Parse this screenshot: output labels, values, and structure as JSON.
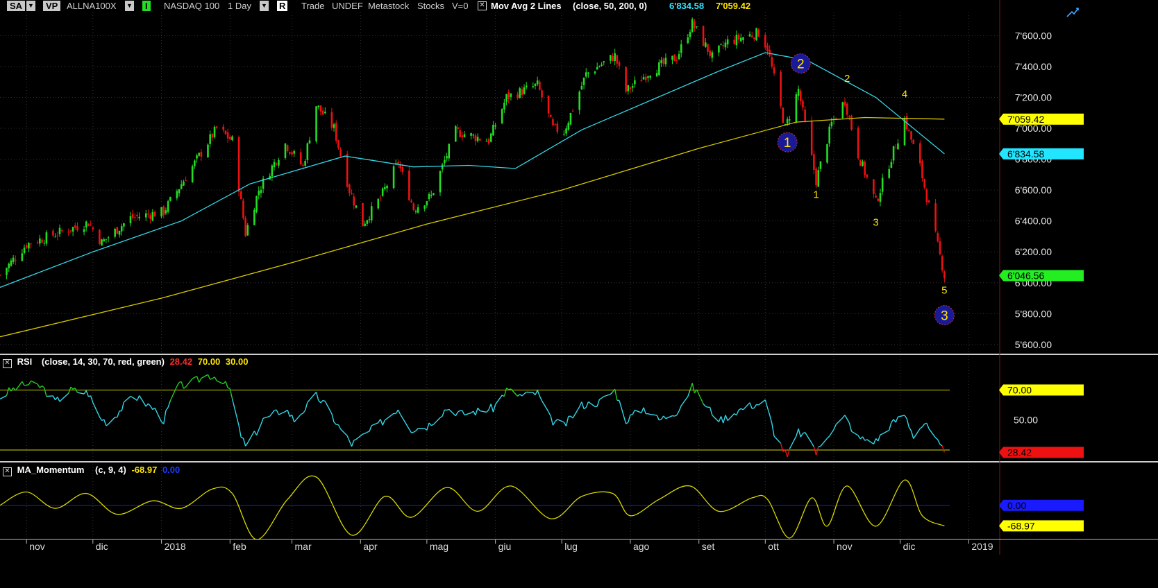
{
  "toolbar": {
    "sa_label": "SA",
    "vp_label": "VP",
    "symbol": "ALLNA100X",
    "indicator_toggle_label": "I",
    "instrument_name": "NASDAQ 100",
    "period": "1 Day",
    "r_label": "R",
    "mode_trade": "Trade",
    "mode_undef": "UNDEF",
    "source": "Metastock",
    "asset_class": "Stocks",
    "volume_flag": "V=0",
    "ma_name": "Mov Avg 2 Lines",
    "ma_params": "(close,  50,  200,  0)",
    "ma50_value": "6'834.58",
    "ma200_value": "7'059.42"
  },
  "rsi_header": {
    "name": "RSI",
    "params": "(close,  14,  30,  70,  red,  green)",
    "value": "28.42",
    "upper": "70.00",
    "lower": "30.00"
  },
  "mom_header": {
    "name": "MA_Momentum",
    "params": "(c,  9,  4)",
    "value": "-68.97",
    "zero": "0.00"
  },
  "colors": {
    "background": "#000000",
    "grid": "#333333",
    "up": "#22dd22",
    "down": "#ee1111",
    "ma50": "#33d6e6",
    "ma200": "#d8c800",
    "rsi_line": "#33d6e6",
    "rsi_high": "#22cc22",
    "rsi_low": "#ee1111",
    "rsi_band": "#d8d800",
    "momentum": "#d8d800",
    "zero_line": "#1a1aff",
    "wave_circle": "#1a1a99",
    "wave_text": "#ffe600"
  },
  "chart_data": [
    {
      "type": "candlestick",
      "title": "NASDAQ 100 1 Day",
      "y_ticks": [
        "7'600.00",
        "7'400.00",
        "7'200.00",
        "7'000.00",
        "6'800.00",
        "6'600.00",
        "6'400.00",
        "6'200.00",
        "6'000.00",
        "5'800.00",
        "5'600.00"
      ],
      "y_tick_values": [
        7600,
        7400,
        7200,
        7000,
        6800,
        6600,
        6400,
        6200,
        6000,
        5800,
        5600
      ],
      "ylim": [
        5550,
        7750
      ],
      "x_ticks": [
        "nov",
        "dic",
        "2018",
        "feb",
        "mar",
        "apr",
        "mag",
        "giu",
        "lug",
        "ago",
        "set",
        "ott",
        "nov",
        "dic",
        "2019"
      ],
      "x_tick_dates": [
        "2017-11-01",
        "2017-12-01",
        "2018-01-01",
        "2018-02-01",
        "2018-03-01",
        "2018-04-01",
        "2018-05-01",
        "2018-06-01",
        "2018-07-01",
        "2018-08-01",
        "2018-09-01",
        "2018-10-01",
        "2018-11-01",
        "2018-12-01",
        "2019-01-01"
      ],
      "x_range": [
        "2017-10-20",
        "2019-01-15"
      ],
      "last_date": "2018-12-21",
      "close_path": [
        {
          "date": "2017-10-20",
          "close": 6050
        },
        {
          "date": "2017-11-01",
          "close": 6250
        },
        {
          "date": "2017-11-15",
          "close": 6320
        },
        {
          "date": "2017-11-29",
          "close": 6390
        },
        {
          "date": "2017-12-05",
          "close": 6260
        },
        {
          "date": "2017-12-18",
          "close": 6420
        },
        {
          "date": "2018-01-02",
          "close": 6460
        },
        {
          "date": "2018-01-26",
          "close": 7000
        },
        {
          "date": "2018-02-02",
          "close": 6920
        },
        {
          "date": "2018-02-08",
          "close": 6320
        },
        {
          "date": "2018-02-14",
          "close": 6600
        },
        {
          "date": "2018-02-26",
          "close": 6900
        },
        {
          "date": "2018-03-06",
          "close": 6750
        },
        {
          "date": "2018-03-12",
          "close": 7150
        },
        {
          "date": "2018-03-20",
          "close": 7000
        },
        {
          "date": "2018-03-27",
          "close": 6600
        },
        {
          "date": "2018-04-02",
          "close": 6380
        },
        {
          "date": "2018-04-10",
          "close": 6550
        },
        {
          "date": "2018-04-18",
          "close": 6780
        },
        {
          "date": "2018-04-25",
          "close": 6480
        },
        {
          "date": "2018-05-03",
          "close": 6560
        },
        {
          "date": "2018-05-14",
          "close": 6980
        },
        {
          "date": "2018-05-29",
          "close": 6920
        },
        {
          "date": "2018-06-06",
          "close": 7200
        },
        {
          "date": "2018-06-20",
          "close": 7280
        },
        {
          "date": "2018-06-27",
          "close": 7000
        },
        {
          "date": "2018-07-02",
          "close": 6980
        },
        {
          "date": "2018-07-12",
          "close": 7350
        },
        {
          "date": "2018-07-25",
          "close": 7470
        },
        {
          "date": "2018-07-30",
          "close": 7240
        },
        {
          "date": "2018-08-10",
          "close": 7370
        },
        {
          "date": "2018-08-22",
          "close": 7460
        },
        {
          "date": "2018-08-29",
          "close": 7680
        },
        {
          "date": "2018-09-07",
          "close": 7460
        },
        {
          "date": "2018-09-14",
          "close": 7560
        },
        {
          "date": "2018-09-28",
          "close": 7620
        },
        {
          "date": "2018-10-02",
          "close": 7520
        },
        {
          "date": "2018-10-10",
          "close": 7000
        },
        {
          "date": "2018-10-16",
          "close": 7250
        },
        {
          "date": "2018-10-24",
          "close": 6660
        },
        {
          "date": "2018-10-31",
          "close": 7030
        },
        {
          "date": "2018-11-06",
          "close": 7180
        },
        {
          "date": "2018-11-12",
          "close": 6830
        },
        {
          "date": "2018-11-20",
          "close": 6520
        },
        {
          "date": "2018-12-03",
          "close": 7060
        },
        {
          "date": "2018-12-10",
          "close": 6750
        },
        {
          "date": "2018-12-21",
          "close": 6046.56
        }
      ],
      "series": [
        {
          "name": "Mov Avg 50",
          "points": [
            {
              "date": "2017-10-20",
              "value": 5970
            },
            {
              "date": "2017-12-01",
              "value": 6200
            },
            {
              "date": "2018-01-10",
              "value": 6400
            },
            {
              "date": "2018-02-10",
              "value": 6640
            },
            {
              "date": "2018-03-25",
              "value": 6820
            },
            {
              "date": "2018-04-25",
              "value": 6750
            },
            {
              "date": "2018-05-20",
              "value": 6760
            },
            {
              "date": "2018-06-10",
              "value": 6740
            },
            {
              "date": "2018-07-10",
              "value": 6990
            },
            {
              "date": "2018-08-10",
              "value": 7180
            },
            {
              "date": "2018-09-10",
              "value": 7370
            },
            {
              "date": "2018-10-01",
              "value": 7490
            },
            {
              "date": "2018-10-20",
              "value": 7440
            },
            {
              "date": "2018-11-20",
              "value": 7200
            },
            {
              "date": "2018-12-21",
              "value": 6834.58
            }
          ]
        },
        {
          "name": "Mov Avg 200",
          "points": [
            {
              "date": "2017-10-20",
              "value": 5650
            },
            {
              "date": "2018-01-01",
              "value": 5900
            },
            {
              "date": "2018-03-01",
              "value": 6130
            },
            {
              "date": "2018-05-01",
              "value": 6380
            },
            {
              "date": "2018-07-01",
              "value": 6600
            },
            {
              "date": "2018-09-01",
              "value": 6870
            },
            {
              "date": "2018-10-15",
              "value": 7040
            },
            {
              "date": "2018-11-15",
              "value": 7070
            },
            {
              "date": "2018-12-21",
              "value": 7059.42
            }
          ]
        }
      ],
      "price_tags": [
        {
          "label": "7'059.42",
          "value": 7059.42,
          "bg": "#ffff00",
          "fg": "#000000"
        },
        {
          "label": "6'834.58",
          "value": 6834.58,
          "bg": "#22e6ff",
          "fg": "#000000"
        },
        {
          "label": "6'046.56",
          "value": 6046.56,
          "bg": "#22ee22",
          "fg": "#000000"
        }
      ],
      "wave_circles": [
        {
          "label": "1",
          "date": "2018-10-11",
          "value": 6910
        },
        {
          "label": "2",
          "date": "2018-10-17",
          "value": 7420
        },
        {
          "label": "3",
          "date": "2018-12-21",
          "value": 5790
        }
      ],
      "wave_numbers": [
        {
          "label": "1",
          "date": "2018-10-24",
          "value": 6550
        },
        {
          "label": "2",
          "date": "2018-11-07",
          "value": 7300
        },
        {
          "label": "3",
          "date": "2018-11-20",
          "value": 6370
        },
        {
          "label": "4",
          "date": "2018-12-03",
          "value": 7200
        },
        {
          "label": "5",
          "date": "2018-12-21",
          "value": 5930
        }
      ]
    },
    {
      "type": "line",
      "title": "RSI",
      "y_ticks": [
        "50.00"
      ],
      "y_tick_values": [
        50
      ],
      "ylim": [
        24,
        85
      ],
      "bands": [
        70,
        30
      ],
      "band_tags": [
        {
          "label": "70.00",
          "value": 70,
          "bg": "#ffff00",
          "fg": "#000000"
        },
        {
          "label": "28.42",
          "value": 28.42,
          "bg": "#ee1111",
          "fg": "#000000"
        }
      ],
      "points": [
        {
          "date": "2017-10-20",
          "value": 65
        },
        {
          "date": "2017-10-25",
          "value": 70
        },
        {
          "date": "2017-11-01",
          "value": 74
        },
        {
          "date": "2017-11-08",
          "value": 72
        },
        {
          "date": "2017-11-14",
          "value": 62
        },
        {
          "date": "2017-11-21",
          "value": 70
        },
        {
          "date": "2017-11-29",
          "value": 68
        },
        {
          "date": "2017-12-04",
          "value": 52
        },
        {
          "date": "2017-12-08",
          "value": 48
        },
        {
          "date": "2017-12-14",
          "value": 58
        },
        {
          "date": "2017-12-20",
          "value": 66
        },
        {
          "date": "2017-12-28",
          "value": 58
        },
        {
          "date": "2018-01-02",
          "value": 50
        },
        {
          "date": "2018-01-08",
          "value": 72
        },
        {
          "date": "2018-01-15",
          "value": 75
        },
        {
          "date": "2018-01-22",
          "value": 80
        },
        {
          "date": "2018-01-26",
          "value": 79
        },
        {
          "date": "2018-02-01",
          "value": 70
        },
        {
          "date": "2018-02-05",
          "value": 44
        },
        {
          "date": "2018-02-08",
          "value": 32
        },
        {
          "date": "2018-02-12",
          "value": 40
        },
        {
          "date": "2018-02-16",
          "value": 50
        },
        {
          "date": "2018-02-26",
          "value": 58
        },
        {
          "date": "2018-03-02",
          "value": 50
        },
        {
          "date": "2018-03-12",
          "value": 66
        },
        {
          "date": "2018-03-16",
          "value": 60
        },
        {
          "date": "2018-03-22",
          "value": 46
        },
        {
          "date": "2018-03-28",
          "value": 34
        },
        {
          "date": "2018-04-03",
          "value": 40
        },
        {
          "date": "2018-04-10",
          "value": 48
        },
        {
          "date": "2018-04-18",
          "value": 58
        },
        {
          "date": "2018-04-24",
          "value": 44
        },
        {
          "date": "2018-05-01",
          "value": 46
        },
        {
          "date": "2018-05-10",
          "value": 58
        },
        {
          "date": "2018-05-17",
          "value": 54
        },
        {
          "date": "2018-05-24",
          "value": 56
        },
        {
          "date": "2018-05-31",
          "value": 58
        },
        {
          "date": "2018-06-06",
          "value": 70
        },
        {
          "date": "2018-06-13",
          "value": 66
        },
        {
          "date": "2018-06-20",
          "value": 68
        },
        {
          "date": "2018-06-26",
          "value": 50
        },
        {
          "date": "2018-07-02",
          "value": 46
        },
        {
          "date": "2018-07-10",
          "value": 60
        },
        {
          "date": "2018-07-18",
          "value": 62
        },
        {
          "date": "2018-07-25",
          "value": 70
        },
        {
          "date": "2018-07-30",
          "value": 50
        },
        {
          "date": "2018-08-07",
          "value": 58
        },
        {
          "date": "2018-08-14",
          "value": 50
        },
        {
          "date": "2018-08-22",
          "value": 56
        },
        {
          "date": "2018-08-29",
          "value": 72
        },
        {
          "date": "2018-09-05",
          "value": 58
        },
        {
          "date": "2018-09-11",
          "value": 50
        },
        {
          "date": "2018-09-18",
          "value": 56
        },
        {
          "date": "2018-09-25",
          "value": 60
        },
        {
          "date": "2018-10-01",
          "value": 62
        },
        {
          "date": "2018-10-05",
          "value": 42
        },
        {
          "date": "2018-10-11",
          "value": 25
        },
        {
          "date": "2018-10-16",
          "value": 42
        },
        {
          "date": "2018-10-22",
          "value": 36
        },
        {
          "date": "2018-10-24",
          "value": 28
        },
        {
          "date": "2018-10-31",
          "value": 44
        },
        {
          "date": "2018-11-06",
          "value": 52
        },
        {
          "date": "2018-11-12",
          "value": 38
        },
        {
          "date": "2018-11-20",
          "value": 36
        },
        {
          "date": "2018-11-26",
          "value": 46
        },
        {
          "date": "2018-12-03",
          "value": 54
        },
        {
          "date": "2018-12-07",
          "value": 40
        },
        {
          "date": "2018-12-12",
          "value": 48
        },
        {
          "date": "2018-12-17",
          "value": 36
        },
        {
          "date": "2018-12-21",
          "value": 28.42
        }
      ]
    },
    {
      "type": "line",
      "title": "MA_Momentum",
      "ylim": [
        -110,
        95
      ],
      "zero_tag": {
        "label": "0.00",
        "value": 0,
        "bg": "#1a1aff",
        "fg": "#000000"
      },
      "value_tag": {
        "label": "-68.97",
        "value": -68.97,
        "bg": "#ffff00",
        "fg": "#000000"
      },
      "points": [
        {
          "date": "2017-10-20",
          "value": 0
        },
        {
          "date": "2017-11-01",
          "value": 45
        },
        {
          "date": "2017-11-14",
          "value": -10
        },
        {
          "date": "2017-11-28",
          "value": 40
        },
        {
          "date": "2017-12-12",
          "value": -30
        },
        {
          "date": "2017-12-28",
          "value": 15
        },
        {
          "date": "2018-01-10",
          "value": -10
        },
        {
          "date": "2018-01-24",
          "value": 55
        },
        {
          "date": "2018-02-02",
          "value": 40
        },
        {
          "date": "2018-02-13",
          "value": -115
        },
        {
          "date": "2018-02-27",
          "value": 20
        },
        {
          "date": "2018-03-12",
          "value": 95
        },
        {
          "date": "2018-03-28",
          "value": -100
        },
        {
          "date": "2018-04-12",
          "value": 30
        },
        {
          "date": "2018-04-24",
          "value": -40
        },
        {
          "date": "2018-05-10",
          "value": 60
        },
        {
          "date": "2018-05-24",
          "value": -20
        },
        {
          "date": "2018-06-08",
          "value": 65
        },
        {
          "date": "2018-06-26",
          "value": -45
        },
        {
          "date": "2018-07-10",
          "value": 30
        },
        {
          "date": "2018-07-24",
          "value": 40
        },
        {
          "date": "2018-08-01",
          "value": -35
        },
        {
          "date": "2018-08-14",
          "value": 20
        },
        {
          "date": "2018-08-28",
          "value": 65
        },
        {
          "date": "2018-09-10",
          "value": -20
        },
        {
          "date": "2018-09-25",
          "value": 25
        },
        {
          "date": "2018-10-02",
          "value": 20
        },
        {
          "date": "2018-10-12",
          "value": -110
        },
        {
          "date": "2018-10-22",
          "value": 25
        },
        {
          "date": "2018-10-29",
          "value": -70
        },
        {
          "date": "2018-11-07",
          "value": 65
        },
        {
          "date": "2018-11-20",
          "value": -70
        },
        {
          "date": "2018-12-03",
          "value": 85
        },
        {
          "date": "2018-12-11",
          "value": -35
        },
        {
          "date": "2018-12-21",
          "value": -68.97
        }
      ]
    }
  ]
}
